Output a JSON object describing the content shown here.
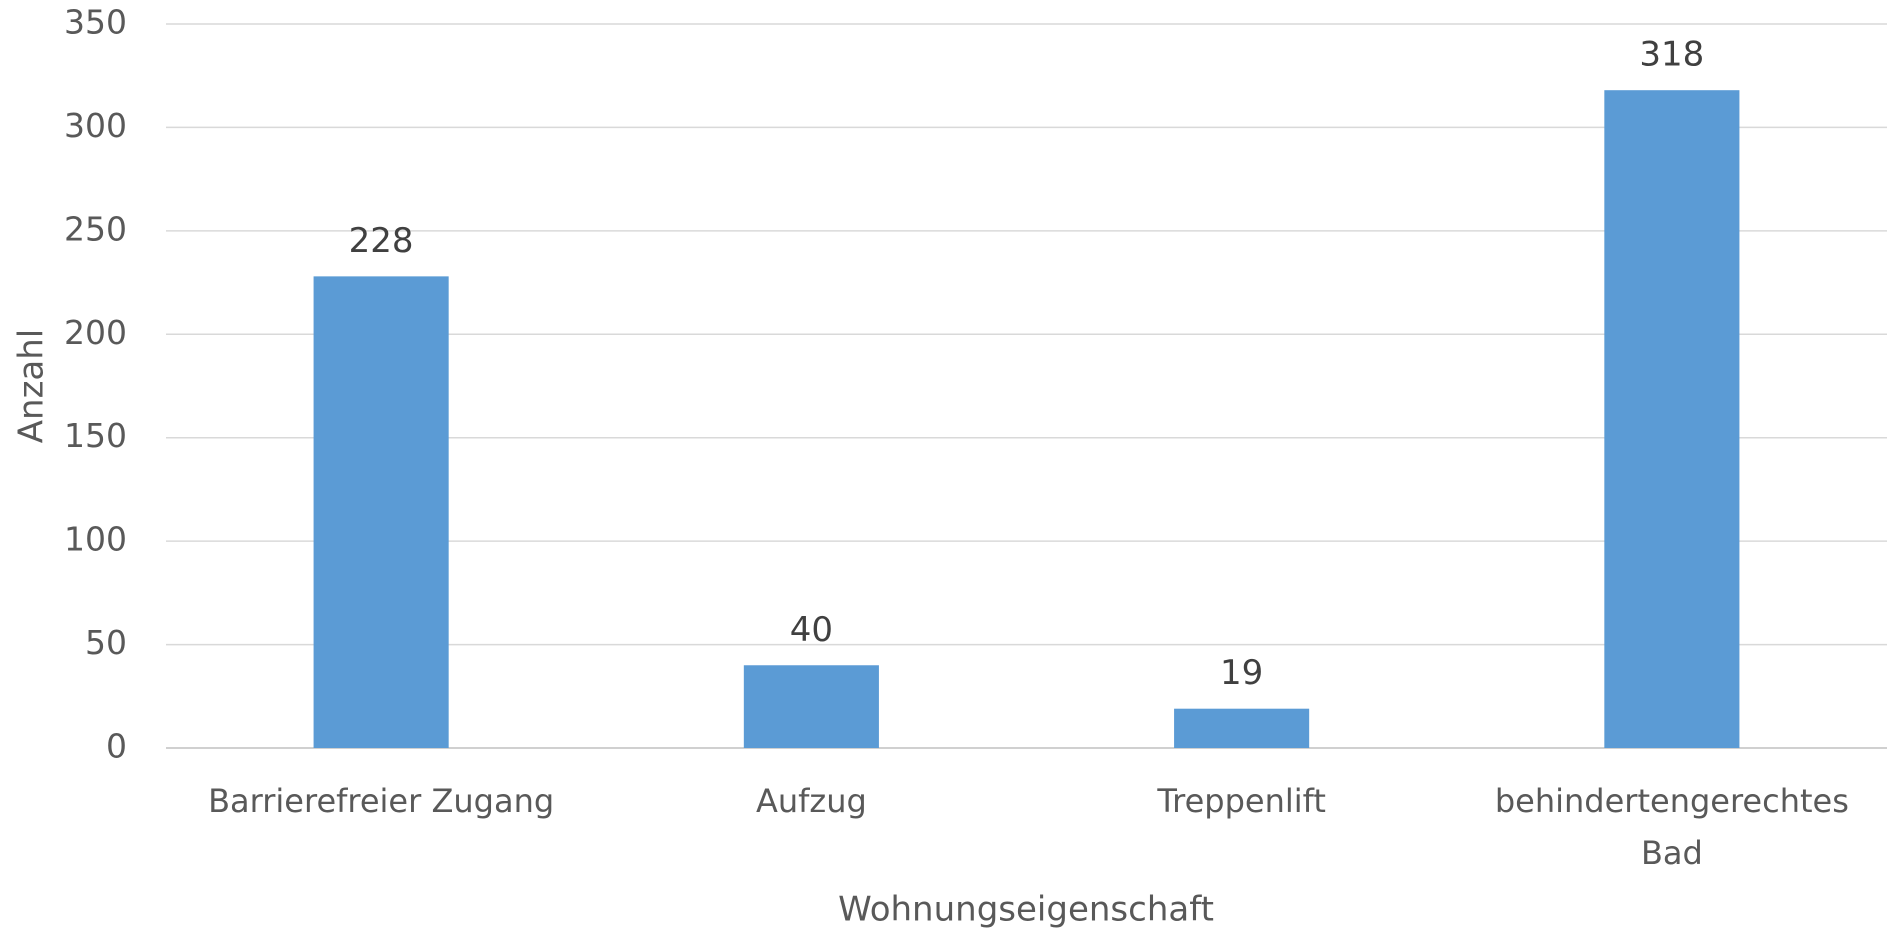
{
  "chart_data": {
    "type": "bar",
    "categories": [
      "Barrierefreier Zugang",
      "Aufzug",
      "Treppenlift",
      "behindertengerechtes Bad"
    ],
    "values": [
      228,
      40,
      19,
      318
    ],
    "color": "#5b9bd5",
    "xlabel": "Wohnungseigenschaft",
    "ylabel": "Anzahl",
    "ylim": [
      0,
      350
    ],
    "yticks": [
      0,
      50,
      100,
      150,
      200,
      250,
      300,
      350
    ],
    "grid": true
  }
}
